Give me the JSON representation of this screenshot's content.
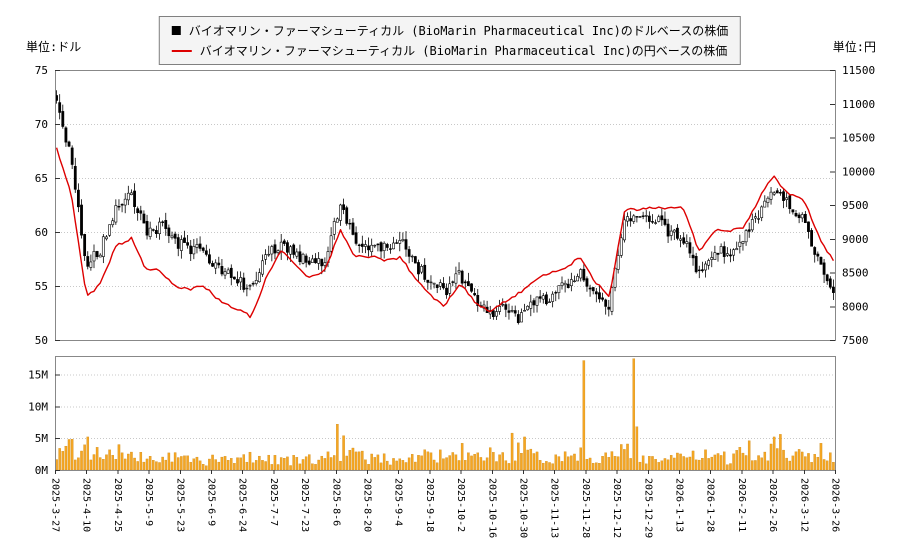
{
  "axes": {
    "left_unit_label": "単位:ドル",
    "right_unit_label": "単位:円"
  },
  "legend": {
    "items": [
      {
        "marker": "square",
        "color": "#000000",
        "label": "バイオマリン・ファーマシューティカル (BioMarin Pharmaceutical Inc)のドルベースの株価"
      },
      {
        "marker": "line",
        "color": "#dd0000",
        "label": "バイオマリン・ファーマシューティカル (BioMarin Pharmaceutical Inc)の円ベースの株価"
      }
    ]
  },
  "colors": {
    "candlestick": "#000000",
    "jpy_line": "#dd0000",
    "volume_bar": "#f5a623",
    "grid": "#c8c8c8",
    "border": "#888888",
    "background": "#ffffff"
  },
  "chart_data": [
    {
      "type": "candlestick",
      "title": "",
      "x_tick_labels": [
        "2025-3-27",
        "2025-4-10",
        "2025-4-25",
        "2025-5-9",
        "2025-5-23",
        "2025-6-9",
        "2025-6-24",
        "2025-7-7",
        "2025-7-23",
        "2025-8-6",
        "2025-8-20",
        "2025-9-4",
        "2025-9-18",
        "2025-10-2",
        "2025-10-16",
        "2025-10-30",
        "2025-11-13",
        "2025-11-28",
        "2025-12-12",
        "2025-12-29",
        "2026-1-13",
        "2026-1-28",
        "2026-2-11",
        "2026-2-26",
        "2026-3-12",
        "2026-3-26"
      ],
      "left_axis": {
        "unit": "単位:ドル",
        "min": 50,
        "max": 75,
        "ticks": [
          75,
          70,
          65,
          60,
          55,
          50
        ]
      },
      "right_axis": {
        "unit": "単位:円",
        "min": 7500,
        "max": 11500,
        "ticks": [
          11500,
          11000,
          10500,
          10000,
          9500,
          9000,
          8500,
          8000,
          7500
        ]
      },
      "grid": true,
      "legend_position": "top-center",
      "series": [
        {
          "name": "バイオマリン・ファーマシューティカル (BioMarin Pharmaceutical Inc)のドルベースの株価",
          "type": "candlestick",
          "axis": "left",
          "color": "#000000",
          "field": "usd_close"
        },
        {
          "name": "バイオマリン・ファーマシューティカル (BioMarin Pharmaceutical Inc)の円ベースの株価",
          "type": "line",
          "axis": "right",
          "color": "#dd0000",
          "field": "jpy_close"
        }
      ],
      "weekly_estimates": {
        "fields": [
          "date",
          "usd_close",
          "jpy_close"
        ],
        "rows": [
          [
            "2025-3-27",
            72.5,
            10300
          ],
          [
            "2025-4-3",
            66.5,
            9600
          ],
          [
            "2025-4-10",
            57.0,
            8200
          ],
          [
            "2025-4-17",
            58.5,
            8400
          ],
          [
            "2025-4-24",
            62.5,
            8900
          ],
          [
            "2025-5-1",
            63.5,
            9050
          ],
          [
            "2025-5-8",
            60.0,
            8500
          ],
          [
            "2025-5-15",
            60.5,
            8450
          ],
          [
            "2025-5-22",
            59.0,
            8300
          ],
          [
            "2025-5-29",
            58.5,
            8250
          ],
          [
            "2025-6-5",
            58.0,
            8300
          ],
          [
            "2025-6-12",
            56.5,
            8150
          ],
          [
            "2025-6-19",
            55.5,
            7950
          ],
          [
            "2025-6-26",
            54.8,
            7800
          ],
          [
            "2025-7-3",
            57.5,
            8400
          ],
          [
            "2025-7-10",
            59.0,
            8750
          ],
          [
            "2025-7-17",
            58.0,
            8600
          ],
          [
            "2025-7-24",
            57.0,
            8500
          ],
          [
            "2025-7-31",
            57.5,
            8550
          ],
          [
            "2025-8-7",
            62.5,
            9150
          ],
          [
            "2025-8-14",
            59.5,
            8750
          ],
          [
            "2025-8-21",
            58.5,
            8650
          ],
          [
            "2025-8-28",
            58.5,
            8650
          ],
          [
            "2025-9-4",
            59.5,
            8750
          ],
          [
            "2025-9-11",
            57.0,
            8400
          ],
          [
            "2025-9-18",
            55.5,
            8250
          ],
          [
            "2025-9-25",
            54.5,
            8050
          ],
          [
            "2025-10-2",
            56.0,
            8300
          ],
          [
            "2025-10-9",
            54.0,
            8050
          ],
          [
            "2025-10-16",
            52.5,
            7900
          ],
          [
            "2025-10-23",
            53.0,
            8000
          ],
          [
            "2025-10-30",
            51.8,
            8250
          ],
          [
            "2025-11-6",
            53.5,
            8450
          ],
          [
            "2025-11-13",
            54.0,
            8500
          ],
          [
            "2025-11-20",
            55.0,
            8600
          ],
          [
            "2025-11-27",
            56.5,
            8700
          ],
          [
            "2025-12-4",
            54.0,
            8300
          ],
          [
            "2025-12-11",
            53.0,
            8150
          ],
          [
            "2025-12-18",
            61.5,
            9400
          ],
          [
            "2025-12-25",
            61.0,
            9450
          ],
          [
            "2026-1-1",
            61.5,
            9550
          ],
          [
            "2026-1-8",
            60.0,
            9450
          ],
          [
            "2026-1-15",
            59.5,
            9400
          ],
          [
            "2026-1-22",
            56.0,
            8800
          ],
          [
            "2026-1-29",
            58.5,
            9050
          ],
          [
            "2026-2-5",
            58.0,
            9100
          ],
          [
            "2026-2-12",
            59.5,
            9250
          ],
          [
            "2026-2-19",
            61.5,
            9600
          ],
          [
            "2026-2-26",
            64.0,
            9950
          ],
          [
            "2026-3-5",
            62.5,
            9700
          ],
          [
            "2026-3-12",
            61.0,
            9500
          ],
          [
            "2026-3-19",
            57.5,
            9000
          ],
          [
            "2026-3-26",
            54.5,
            8700
          ]
        ]
      }
    },
    {
      "type": "bar",
      "name": "volume",
      "color": "#f5a623",
      "y_ticks": [
        "15M",
        "10M",
        "5M",
        "0M"
      ],
      "display_max_m": 17.6,
      "weekly_volume_m": [
        2.2,
        3.5,
        3.2,
        2.6,
        2.2,
        1.8,
        1.8,
        1.6,
        2.0,
        1.6,
        1.4,
        1.6,
        1.4,
        2.2,
        1.6,
        1.8,
        1.4,
        1.6,
        1.8,
        2.8,
        2.2,
        1.8,
        1.6,
        1.8,
        2.0,
        2.4,
        1.8,
        2.0,
        1.6,
        2.4,
        1.8,
        2.8,
        1.8,
        1.8,
        2.2,
        2.6,
        2.2,
        1.8,
        3.0,
        2.2,
        1.6,
        1.8,
        1.8,
        2.2,
        1.8,
        1.8,
        2.8,
        2.2,
        3.2,
        2.2,
        2.6,
        2.2,
        2.4
      ],
      "spikes": [
        {
          "label_index": 0.4,
          "value_m": 4.8
        },
        {
          "label_index": 1.0,
          "value_m": 5.2
        },
        {
          "label_index": 2.0,
          "value_m": 4.0
        },
        {
          "label_index": 9.0,
          "value_m": 7.2
        },
        {
          "label_index": 9.2,
          "value_m": 5.4
        },
        {
          "label_index": 13.0,
          "value_m": 4.2
        },
        {
          "label_index": 14.6,
          "value_m": 5.8
        },
        {
          "label_index": 15.0,
          "value_m": 5.2
        },
        {
          "label_index": 16.9,
          "value_m": 17.2
        },
        {
          "label_index": 18.5,
          "value_m": 17.5
        },
        {
          "label_index": 18.6,
          "value_m": 6.8
        },
        {
          "label_index": 22.2,
          "value_m": 4.6
        },
        {
          "label_index": 23.0,
          "value_m": 5.2
        },
        {
          "label_index": 23.2,
          "value_m": 5.6
        },
        {
          "label_index": 24.5,
          "value_m": 4.2
        }
      ]
    }
  ]
}
